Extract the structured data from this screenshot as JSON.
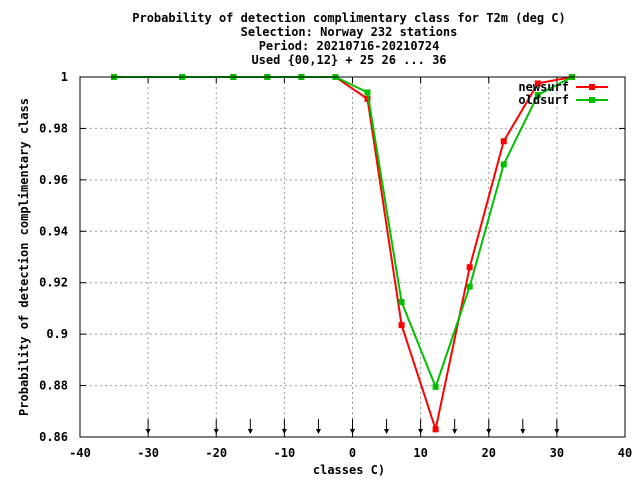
{
  "chart_data": {
    "type": "line",
    "title_lines": [
      "Probability of detection complimentary class  for T2m (deg C)",
      "Selection: Norway    232 stations",
      "Period: 20210716-20210724",
      "Used {00,12} + 25 26 ... 36"
    ],
    "xlabel": "classes C)",
    "ylabel": "Probability of detection complimentary class",
    "xlim": [
      -40,
      40
    ],
    "ylim": [
      0.86,
      1.0
    ],
    "x_ticks": [
      -40,
      -30,
      -20,
      -10,
      0,
      10,
      20,
      30,
      40
    ],
    "x_tick_labels": [
      "-40",
      "-30",
      "-20",
      "-10",
      "0",
      "10",
      "20",
      "30",
      "40"
    ],
    "y_ticks": [
      0.86,
      0.88,
      0.9,
      0.92,
      0.94,
      0.96,
      0.98,
      1.0
    ],
    "y_tick_labels": [
      "0.86",
      "0.88",
      "0.9",
      "0.92",
      "0.94",
      "0.96",
      "0.98",
      "1"
    ],
    "grid": true,
    "legend_position": "top-right",
    "class_marker_x": [
      -30,
      -20,
      -15,
      -10,
      -5,
      0,
      5,
      10,
      15,
      20,
      25,
      30
    ],
    "series": [
      {
        "name": "newsurf",
        "color": "#ff0000",
        "x": [
          -35,
          -25,
          -17.5,
          -12.5,
          -7.5,
          -2.5,
          2.2,
          7.2,
          12.2,
          17.2,
          22.2,
          27.2,
          32.2
        ],
        "y": [
          1.0,
          1.0,
          1.0,
          1.0,
          1.0,
          1.0,
          0.9915,
          0.9035,
          0.863,
          0.926,
          0.975,
          0.9975,
          1.0
        ]
      },
      {
        "name": "oldsurf",
        "color": "#00c000",
        "x": [
          -35,
          -25,
          -17.5,
          -12.5,
          -7.5,
          -2.5,
          2.2,
          7.2,
          12.2,
          17.2,
          22.2,
          27.2,
          32.2
        ],
        "y": [
          1.0,
          1.0,
          1.0,
          1.0,
          1.0,
          1.0,
          0.994,
          0.9125,
          0.8795,
          0.9185,
          0.966,
          0.993,
          1.0
        ]
      }
    ]
  }
}
